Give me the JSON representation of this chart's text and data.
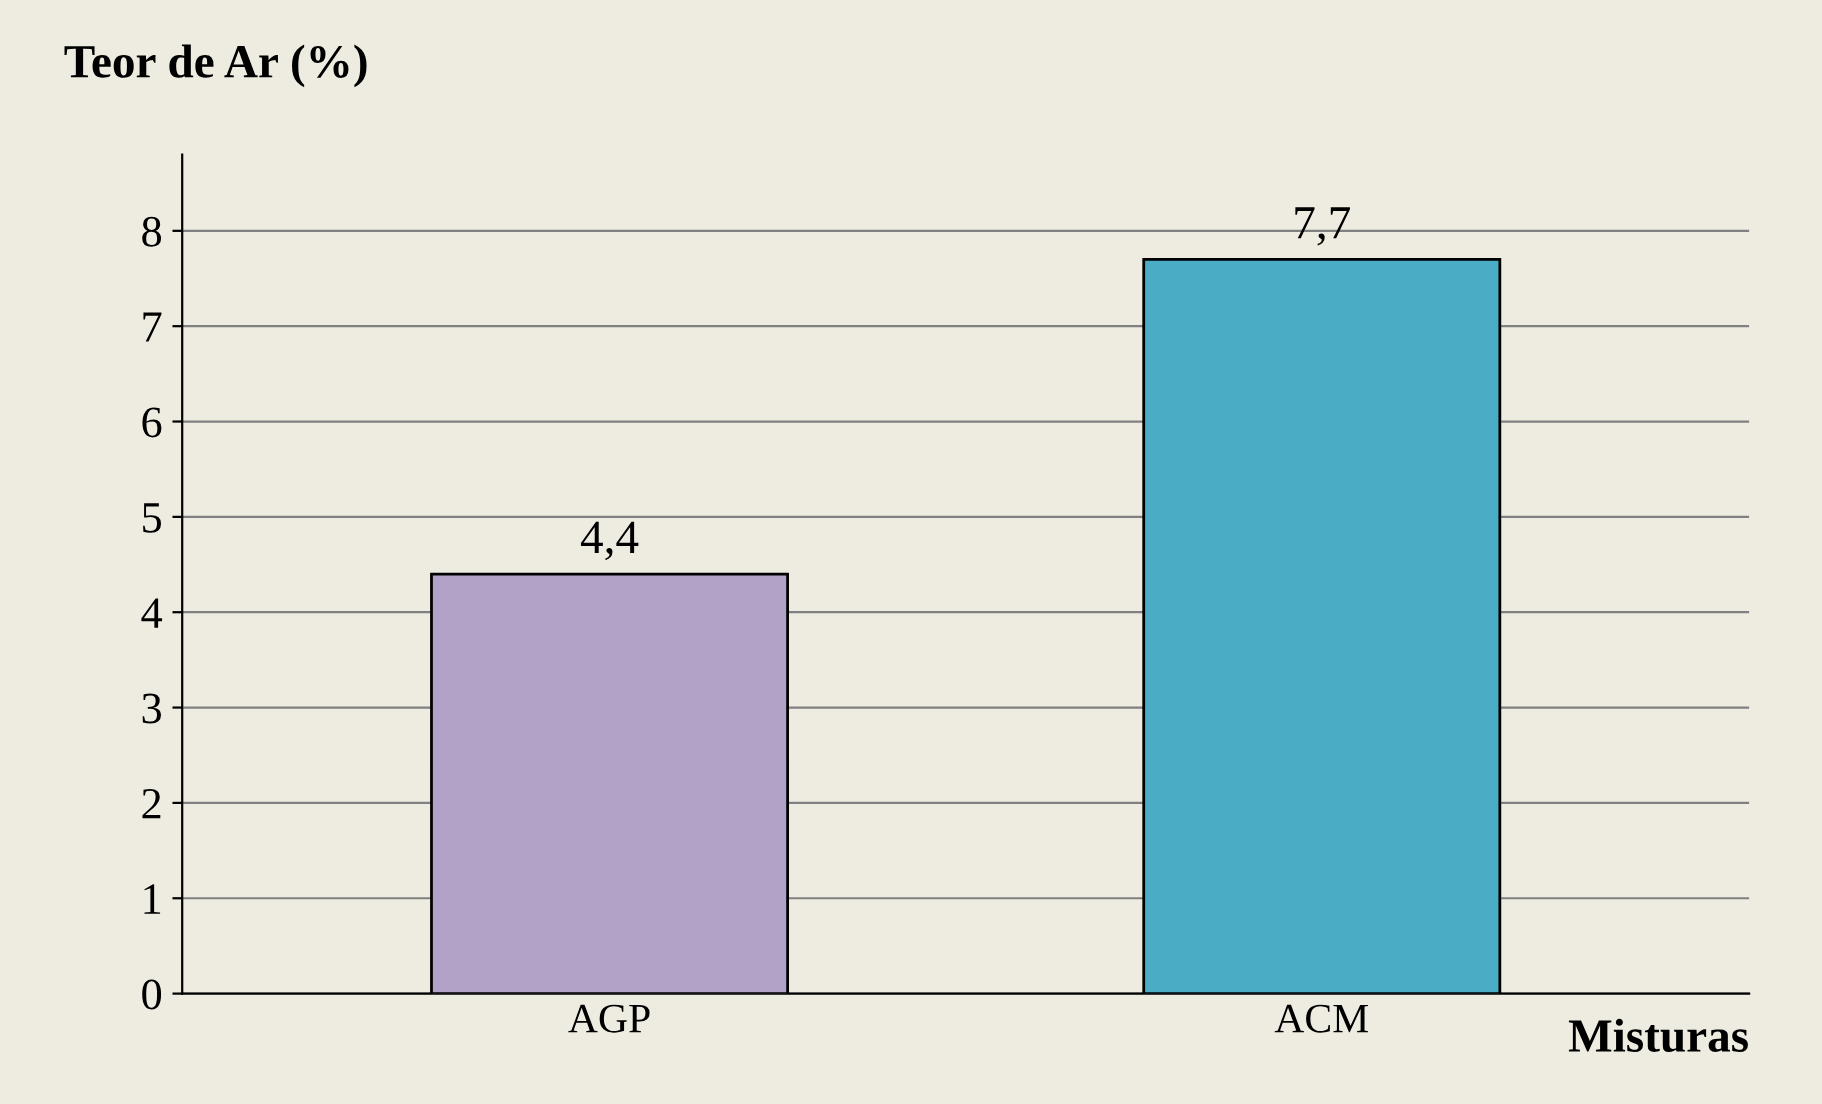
{
  "chart_data": {
    "type": "bar",
    "ylabel": "Teor de Ar (%)",
    "xlabel": "Misturas",
    "categories": [
      "AGP",
      "ACM"
    ],
    "values": [
      4.4,
      7.7
    ],
    "colors": [
      "#b3a2c7",
      "#4bacc6"
    ],
    "value_labels": [
      "4,4",
      "7,7"
    ],
    "ylim": [
      0,
      8.8
    ],
    "yticks": [
      0,
      1,
      2,
      3,
      4,
      5,
      6,
      7,
      8
    ],
    "grid": "y"
  }
}
